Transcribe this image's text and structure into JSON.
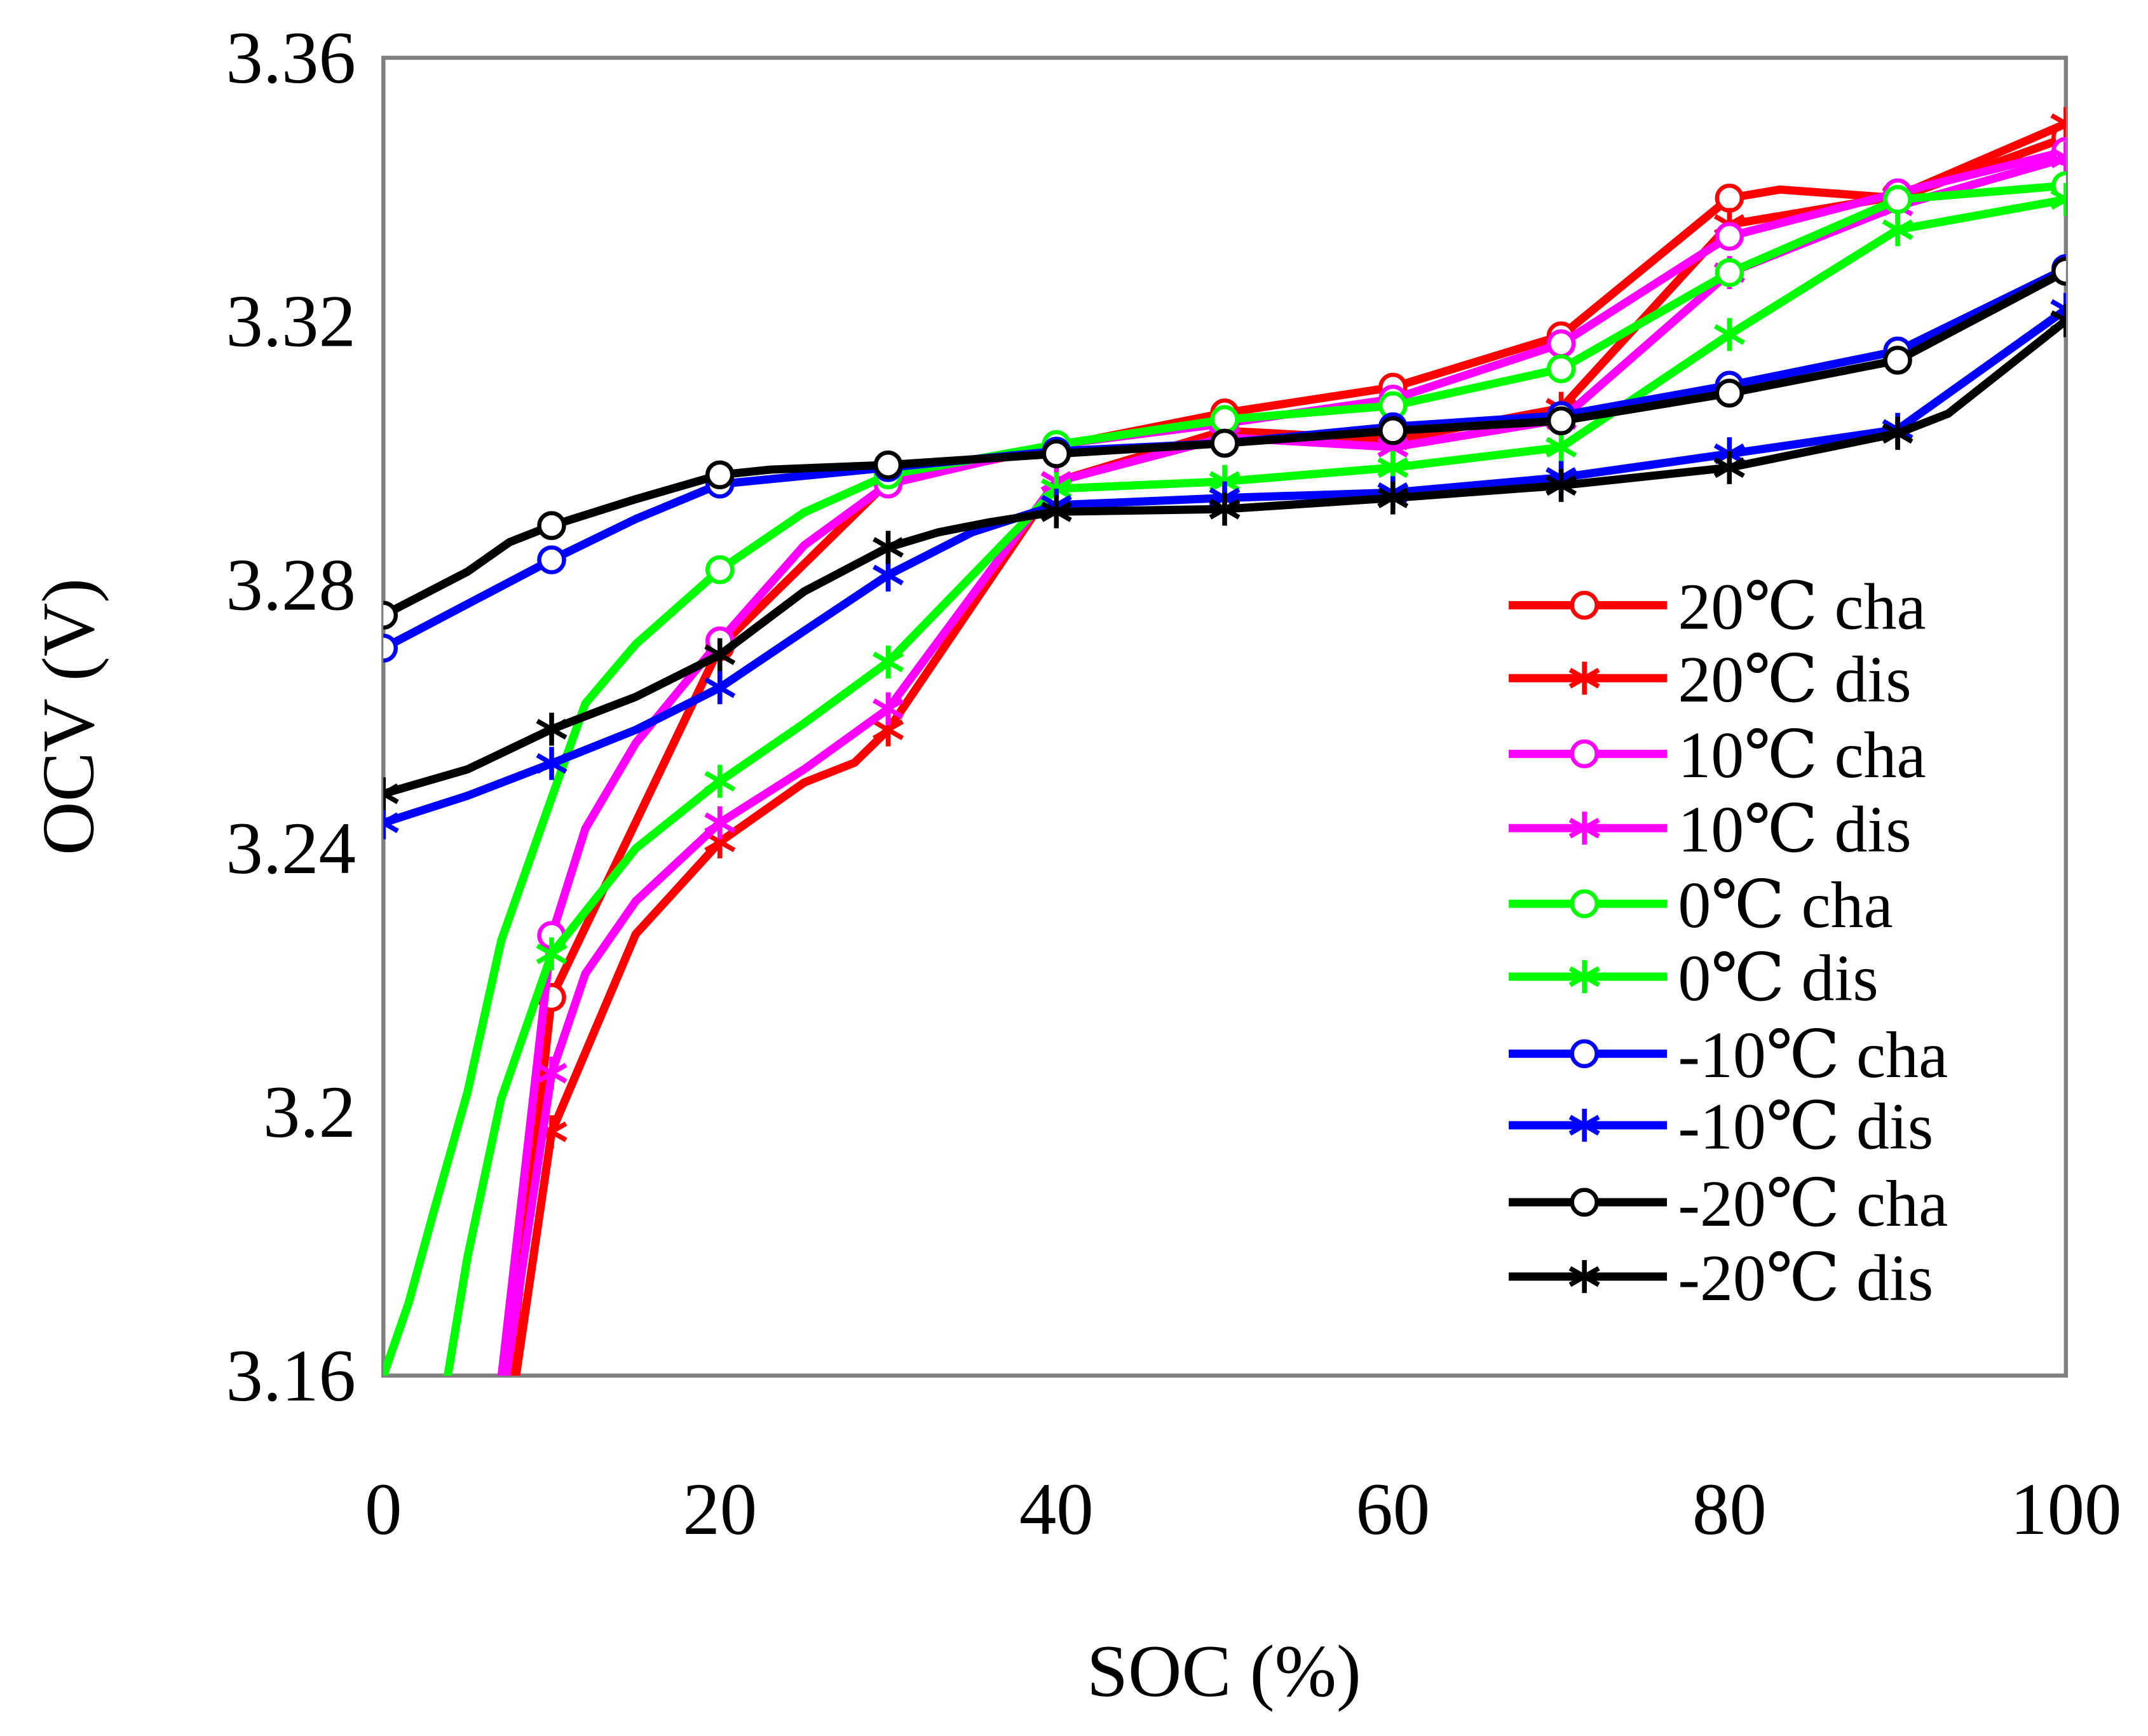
{
  "chart_data": {
    "type": "line",
    "title": "",
    "xlabel": "SOC (%)",
    "ylabel": "OCV (V)",
    "xlim": [
      0,
      100
    ],
    "ylim": [
      3.16,
      3.36
    ],
    "xticks": [
      "0",
      "20",
      "40",
      "60",
      "80",
      "100"
    ],
    "xtick_values": [
      0,
      20,
      40,
      60,
      80,
      100
    ],
    "yticks": [
      "3.16",
      "3.2",
      "3.24",
      "3.28",
      "3.32",
      "3.36"
    ],
    "ytick_values": [
      3.16,
      3.2,
      3.24,
      3.28,
      3.32,
      3.36
    ],
    "grid": false,
    "legend_position": "right-center",
    "series": [
      {
        "name": "20℃ cha",
        "color": "#ff0000",
        "marker": "circle",
        "x": [
          7.3,
          10,
          20,
          30,
          40,
          50,
          60,
          70,
          80,
          83,
          90,
          100
        ],
        "y": [
          3.155,
          3.2174,
          3.2706,
          3.2957,
          3.301,
          3.3061,
          3.31,
          3.3178,
          3.3387,
          3.34,
          3.3387,
          3.3479
        ],
        "marker_x": [
          10,
          20,
          30,
          40,
          50,
          60,
          70,
          80,
          90,
          100
        ]
      },
      {
        "name": "20℃ dis",
        "color": "#ff0000",
        "marker": "star",
        "x": [
          7.6,
          10,
          15,
          20,
          25,
          28,
          30,
          40,
          50,
          60,
          70,
          80,
          90,
          100
        ],
        "y": [
          3.155,
          3.197,
          3.227,
          3.241,
          3.25,
          3.253,
          3.258,
          3.2957,
          3.3034,
          3.302,
          3.3068,
          3.3347,
          3.339,
          3.35
        ],
        "marker_x": [
          10,
          20,
          30,
          40,
          50,
          60,
          70,
          80,
          90,
          100
        ]
      },
      {
        "name": "10℃ cha",
        "color": "#ff00ff",
        "marker": "circle",
        "x": [
          6.8,
          10,
          12,
          15,
          20,
          25,
          30,
          40,
          50,
          60,
          70,
          80,
          90,
          100
        ],
        "y": [
          3.155,
          3.2268,
          3.243,
          3.256,
          3.2715,
          3.286,
          3.2953,
          3.3013,
          3.3045,
          3.3082,
          3.3166,
          3.3329,
          3.3395,
          3.3458
        ],
        "marker_x": [
          10,
          20,
          30,
          40,
          50,
          60,
          70,
          80,
          90,
          100
        ]
      },
      {
        "name": "10℃ dis",
        "color": "#ff00ff",
        "marker": "star",
        "x": [
          7.0,
          10,
          12,
          15,
          20,
          25,
          30,
          40,
          50,
          60,
          70,
          80,
          90,
          100
        ],
        "y": [
          3.155,
          3.2059,
          3.221,
          3.232,
          3.2439,
          3.252,
          3.2612,
          3.2957,
          3.3024,
          3.3009,
          3.3051,
          3.3274,
          3.3375,
          3.3448
        ],
        "marker_x": [
          10,
          20,
          30,
          40,
          50,
          60,
          70,
          80,
          90,
          100
        ]
      },
      {
        "name": " 0℃ cha",
        "color": "#00ff00",
        "marker": "circle",
        "x": [
          0,
          1.5,
          3,
          5,
          7,
          10,
          12,
          15,
          20,
          25,
          30,
          40,
          50,
          60,
          70,
          80,
          90,
          100
        ],
        "y": [
          3.16,
          3.171,
          3.185,
          3.203,
          3.226,
          3.2477,
          3.262,
          3.271,
          3.2823,
          3.291,
          3.2967,
          3.3013,
          3.3051,
          3.3072,
          3.3128,
          3.3274,
          3.3385,
          3.3406
        ],
        "marker_x": [
          20,
          30,
          40,
          50,
          60,
          70,
          80,
          90,
          100
        ]
      },
      {
        "name": " 0℃ dis",
        "color": "#00ff00",
        "marker": "star",
        "x": [
          3.5,
          5,
          7,
          10,
          15,
          20,
          25,
          30,
          40,
          50,
          60,
          70,
          80,
          90,
          100
        ],
        "y": [
          3.155,
          3.178,
          3.202,
          3.224,
          3.24,
          3.2502,
          3.259,
          3.2683,
          3.2946,
          3.2957,
          3.2978,
          3.3009,
          3.318,
          3.3339,
          3.3385
        ],
        "marker_x": [
          10,
          20,
          30,
          40,
          50,
          60,
          70,
          80,
          90,
          100
        ]
      },
      {
        "name": "-10℃ cha",
        "color": "#0000ff",
        "marker": "circle",
        "x": [
          0,
          10,
          15,
          20,
          30,
          40,
          50,
          60,
          70,
          80,
          90,
          100
        ],
        "y": [
          3.2704,
          3.2838,
          3.29,
          3.2953,
          3.2978,
          3.3003,
          3.3015,
          3.304,
          3.3057,
          3.3103,
          3.3155,
          3.328
        ],
        "marker_x": [
          0,
          10,
          20,
          30,
          40,
          50,
          60,
          70,
          80,
          90,
          100
        ]
      },
      {
        "name": "-10℃ dis",
        "color": "#0000ff",
        "marker": "star",
        "x": [
          0,
          5,
          10,
          15,
          20,
          25,
          30,
          35,
          40,
          50,
          60,
          70,
          80,
          90,
          100
        ],
        "y": [
          3.2439,
          3.248,
          3.2529,
          3.258,
          3.2644,
          3.273,
          3.2815,
          3.288,
          3.2921,
          3.2932,
          3.294,
          3.2963,
          3.2999,
          3.3036,
          3.3218
        ],
        "marker_x": [
          0,
          10,
          20,
          30,
          40,
          50,
          60,
          70,
          80,
          90,
          100
        ]
      },
      {
        "name": "-20℃ cha",
        "color": "#000000",
        "marker": "circle",
        "x": [
          0,
          5,
          7.5,
          10,
          15,
          20,
          23,
          30,
          40,
          50,
          60,
          70,
          80,
          90,
          100
        ],
        "y": [
          3.2754,
          3.282,
          3.2865,
          3.289,
          3.293,
          3.2967,
          3.2975,
          3.2982,
          3.2999,
          3.3015,
          3.3034,
          3.3049,
          3.3091,
          3.3141,
          3.3276
        ],
        "marker_x": [
          0,
          10,
          20,
          30,
          40,
          50,
          60,
          70,
          80,
          90,
          100
        ]
      },
      {
        "name": "-20℃ dis",
        "color": "#000000",
        "marker": "star",
        "x": [
          0,
          5,
          10,
          15,
          20,
          25,
          30,
          33,
          36,
          40,
          50,
          60,
          70,
          80,
          90,
          93,
          100
        ],
        "y": [
          3.2483,
          3.252,
          3.2581,
          3.263,
          3.2694,
          3.279,
          3.2857,
          3.288,
          3.2895,
          3.2911,
          3.2915,
          3.2932,
          3.2951,
          3.2978,
          3.303,
          3.306,
          3.3201
        ],
        "marker_x": [
          0,
          10,
          20,
          30,
          40,
          50,
          60,
          70,
          80,
          90,
          100
        ]
      }
    ]
  }
}
